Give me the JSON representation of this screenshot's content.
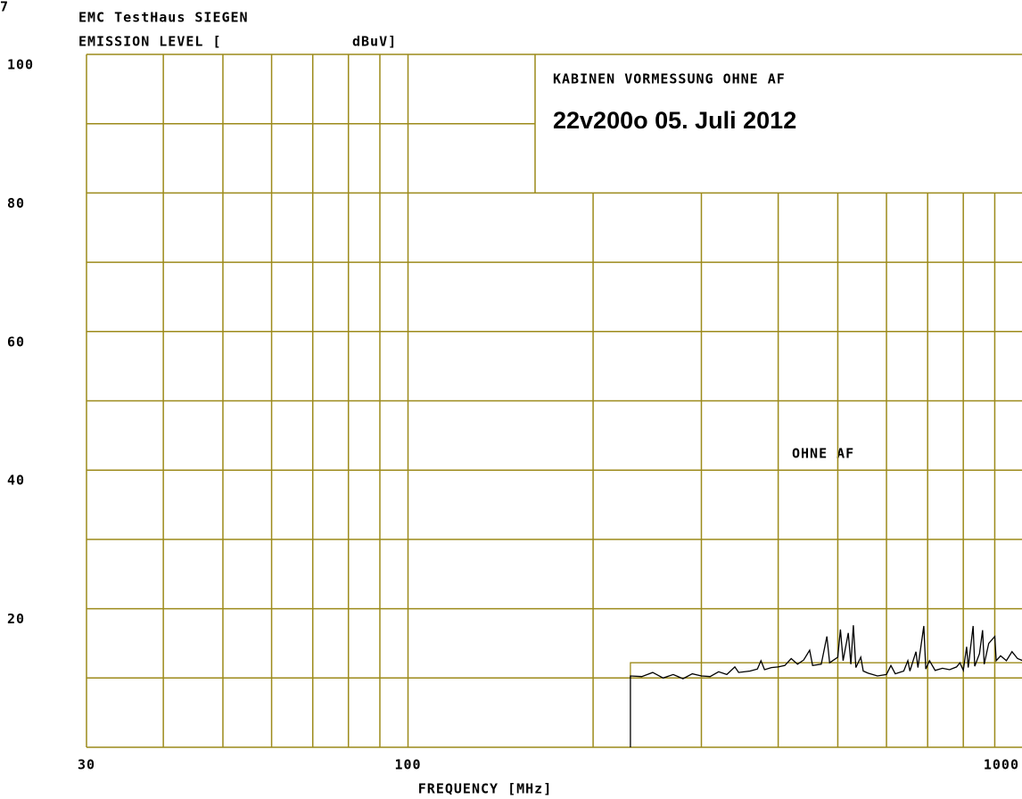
{
  "chart_data": {
    "type": "line",
    "corner_text": "7",
    "header": "EMC TestHaus SIEGEN",
    "ylabel": "EMISSION LEVEL [",
    "yunit": "dBuV]",
    "title": "KABINEN VORMESSUNG OHNE AF",
    "subtitle": "22v200o    05. Juli 2012",
    "annotation": "OHNE AF",
    "xlabel": "FREQUENCY [MHz]",
    "xscale": "log",
    "xlim": [
      30,
      1000
    ],
    "ylim": [
      0,
      100
    ],
    "xticks": [
      30,
      100,
      1000
    ],
    "yticks": [
      20,
      40,
      60,
      80,
      100
    ],
    "xgrid": [
      40,
      50,
      60,
      70,
      80,
      90,
      100,
      200,
      300,
      400,
      500,
      600,
      700,
      800,
      900
    ],
    "ygrid": [
      0,
      10,
      20,
      30,
      40,
      50,
      60,
      70,
      80,
      90,
      100
    ],
    "grid_color": "#9c8a1a",
    "series": [
      {
        "name": "limit",
        "color": "#9c8a1a",
        "x": [
          230,
          230,
          1000
        ],
        "values": [
          10,
          12.2,
          12.2
        ]
      },
      {
        "name": "trace",
        "color": "#000000",
        "x": [
          230,
          230,
          240,
          250,
          260,
          270,
          280,
          290,
          300,
          310,
          320,
          330,
          340,
          345,
          360,
          370,
          375,
          380,
          390,
          400,
          410,
          420,
          430,
          440,
          450,
          455,
          470,
          480,
          485,
          500,
          505,
          510,
          520,
          525,
          530,
          535,
          545,
          550,
          560,
          580,
          600,
          610,
          620,
          640,
          650,
          655,
          670,
          675,
          690,
          695,
          705,
          720,
          740,
          760,
          780,
          790,
          800,
          810,
          815,
          830,
          835,
          850,
          860,
          865,
          880,
          900,
          905,
          920,
          940,
          960,
          980,
          1000
        ],
        "values": [
          0,
          10.3,
          10.2,
          10.8,
          10,
          10.5,
          9.9,
          10.6,
          10.3,
          10.2,
          10.9,
          10.5,
          11.6,
          10.8,
          11,
          11.3,
          12.5,
          11.2,
          11.5,
          11.6,
          11.8,
          12.8,
          12,
          12.6,
          14,
          11.8,
          12,
          16,
          12.2,
          13,
          17,
          12.5,
          16.5,
          12,
          17.6,
          11.5,
          13,
          11,
          10.7,
          10.3,
          10.5,
          11.8,
          10.6,
          11,
          12.5,
          11,
          13.8,
          11.5,
          17.5,
          11.3,
          12.5,
          11.1,
          11.4,
          11.2,
          11.6,
          12.2,
          11.1,
          14.5,
          11.5,
          17.5,
          11.7,
          13.5,
          16.9,
          12,
          15,
          16,
          12.5,
          13.2,
          12.5,
          13.8,
          12.8,
          12.5
        ]
      }
    ]
  }
}
